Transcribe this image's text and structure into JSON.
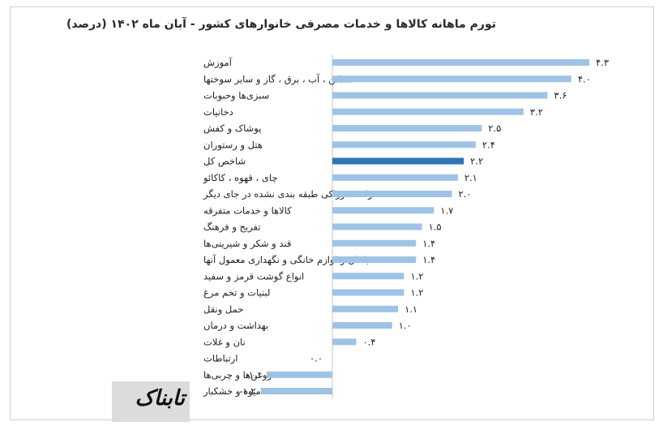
{
  "chart_data": {
    "type": "bar",
    "orientation": "horizontal",
    "title": "تورم ماهانه کالاها و خدمات مصرفی خانوارهای کشور - آبان ماه ۱۴۰۲ (درصد)",
    "categories": [
      "آموزش",
      "مسکن ، آب ، برق ، گاز و سایر سوختها",
      "سبزی‌ها وحبوبات",
      "دخانیات",
      "پوشاک و کفش",
      "هتل و رستوران",
      "شاخص کل",
      "چای ، قهوه ، کاکائو",
      "محصولات خوراکی طبقه بندی نشده در جای دیگر",
      "کالاها و خدمات متفرقه",
      "تفریح و فرهنگ",
      "قند و شکر و شیرینی‌ها",
      "مبلمان و لوازم خانگی و نگهداری معمول آنها",
      "انواع گوشت قرمز و سفید",
      "لبنیات و تخم مرغ",
      "حمل ونقل",
      "بهداشت و درمان",
      "نان و غلات",
      "ارتباطات",
      "روغن‌ها و چربی‌ها",
      "میوه و خشکبار"
    ],
    "values": [
      4.3,
      4.0,
      3.6,
      3.2,
      2.5,
      2.4,
      2.2,
      2.1,
      2.0,
      1.7,
      1.5,
      1.4,
      1.4,
      1.2,
      1.2,
      1.1,
      1.0,
      0.4,
      0.0,
      -1.1,
      -1.2
    ],
    "value_labels": [
      "۴.۳",
      "۴.۰",
      "۳.۶",
      "۳.۲",
      "۲.۵",
      "۲.۴",
      "۲.۲",
      "۲.۱",
      "۲.۰",
      "۱.۷",
      "۱.۵",
      "۱.۴",
      "۱.۴",
      "۱.۲",
      "۱.۲",
      "۱.۱",
      "۱.۰",
      "۰.۴",
      "۰.۰",
      "-۱.۱",
      "-۱.۲"
    ],
    "highlight_category": "شاخص کل",
    "xlim": [
      -1.2,
      4.3
    ],
    "grid": false,
    "legend": "none",
    "colors": {
      "bar": "#9ec3e6",
      "highlight": "#2e75b6",
      "axis": "#c8c8c8"
    }
  },
  "watermark": {
    "text": "تابناک"
  }
}
